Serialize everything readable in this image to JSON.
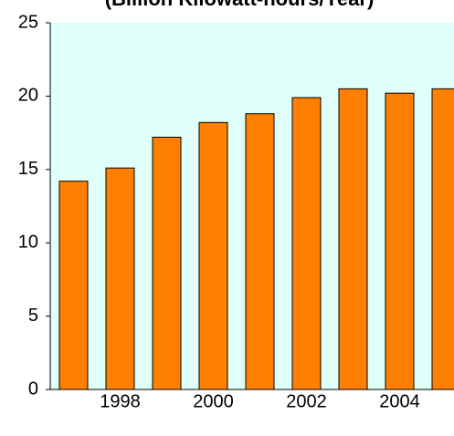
{
  "chart_data": {
    "type": "bar",
    "title": "(Billion Kilowatt-hours/Year)",
    "categories": [
      null,
      "1998",
      null,
      "2000",
      null,
      "2002",
      null,
      "2004",
      null
    ],
    "values": [
      14.2,
      15.1,
      17.2,
      18.2,
      18.8,
      19.9,
      20.5,
      20.2,
      20.5
    ],
    "color": "#ff8000",
    "background": "#e0fff8",
    "ylim": [
      0,
      25
    ],
    "yticks": [
      0,
      5,
      10,
      15,
      20,
      25
    ],
    "grid": false
  }
}
